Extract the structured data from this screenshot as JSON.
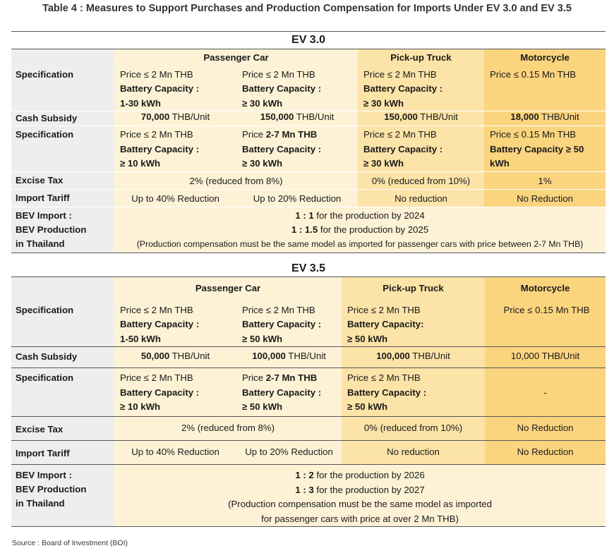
{
  "title": "Table 4 : Measures to Support Purchases and Production Compensation for Imports Under EV 3.0 and EV 3.5",
  "source": "Source : Board of Investment (BOI)",
  "ev30": {
    "section": "EV 3.0",
    "headers": {
      "passenger": "Passenger Car",
      "pickup": "Pick-up Truck",
      "moto": "Motorcycle"
    },
    "labels": {
      "spec1": "Specification",
      "cash": "Cash Subsidy",
      "spec2": "Specification",
      "excise": "Excise Tax",
      "tariff": "Import Tariff",
      "bev1": "BEV Import :",
      "bev2": "BEV Production",
      "bev3": "in Thailand"
    },
    "spec1": {
      "pc1": {
        "price": "Price ≤ 2 Mn THB",
        "bat": "Battery Capacity :",
        "val": "1-30 kWh"
      },
      "pc2": {
        "price": "Price ≤ 2 Mn THB",
        "bat": "Battery Capacity :",
        "val": "≥ 30 kWh"
      },
      "pt": {
        "price": "Price ≤ 2 Mn THB",
        "bat": "Battery Capacity :",
        "val": "≥ 30 kWh"
      },
      "mc": {
        "price": "Price ≤ 0.15 Mn THB"
      }
    },
    "cash": {
      "pc1_num": "70,000",
      "pc2_num": "150,000",
      "pt_num": "150,000",
      "mc_num": "18,000",
      "unit": " THB/Unit"
    },
    "spec2": {
      "pc1": {
        "price": "Price ≤ 2 Mn THB",
        "bat": "Battery Capacity :",
        "val": "≥ 10 kWh"
      },
      "pc2": {
        "price_pre": "Price ",
        "price_bold": "2-7 Mn THB",
        "bat": "Battery Capacity :",
        "val": "≥ 30 kWh"
      },
      "pt": {
        "price": "Price ≤ 2 Mn THB",
        "bat": "Battery Capacity :",
        "val": "≥ 30 kWh"
      },
      "mc": {
        "price": "Price ≤ 0.15 Mn THB",
        "bat": "Battery Capacity ≥ 50",
        "val": "kWh"
      }
    },
    "excise": {
      "pc": "2% (reduced from 8%)",
      "pt": "0% (reduced from 10%)",
      "mc": "1%"
    },
    "tariff": {
      "pc1": "Up to 40% Reduction",
      "pc2": "Up to 20% Reduction",
      "pt": "No reduction",
      "mc": "No Reduction"
    },
    "bev": {
      "r1_bold": "1 : 1",
      "r1_text": " for the production by 2024",
      "r2_bold": "1 : 1.5",
      "r2_text": " for the production by 2025",
      "note": "(Production compensation must be the same model as imported for passenger cars with price between 2-7 Mn THB)"
    }
  },
  "ev35": {
    "section": "EV 3.5",
    "headers": {
      "passenger": "Passenger Car",
      "pickup": "Pick-up Truck",
      "moto": "Motorcycle"
    },
    "labels": {
      "spec1": "Specification",
      "cash": "Cash Subsidy",
      "spec2": "Specification",
      "excise": "Excise Tax",
      "tariff": "Import Tariff",
      "bev1": "BEV Import :",
      "bev2": "BEV Production",
      "bev3": "in Thailand"
    },
    "spec1": {
      "pc1": {
        "price": "Price ≤ 2 Mn THB",
        "bat": "Battery Capacity :",
        "val": "1-50 kWh"
      },
      "pc2": {
        "price": "Price ≤ 2 Mn THB",
        "bat": "Battery Capacity :",
        "val": "≥ 50 kWh"
      },
      "pt": {
        "price": "Price ≤ 2 Mn THB",
        "bat": "Battery Capacity:",
        "val": "≥ 50 kWh"
      },
      "mc": {
        "price": "Price ≤ 0.15 Mn THB"
      }
    },
    "cash": {
      "pc1_num": "50,000",
      "pc2_num": "100,000",
      "pt_num": "100,000",
      "mc_text": "10,000 THB/Unit",
      "unit": " THB/Unit"
    },
    "spec2": {
      "pc1": {
        "price": "Price ≤ 2 Mn THB",
        "bat": "Battery Capacity :",
        "val": "≥ 10 kWh"
      },
      "pc2": {
        "price_pre": "Price ",
        "price_bold": "2-7 Mn THB",
        "bat": "Battery Capacity :",
        "val": "≥ 50 kWh"
      },
      "pt": {
        "price": "Price ≤ 2 Mn THB",
        "bat": "Battery Capacity :",
        "val": "≥ 50 kWh"
      },
      "mc": "-"
    },
    "excise": {
      "pc": "2% (reduced from 8%)",
      "pt": "0% (reduced from 10%)",
      "mc": "No Reduction"
    },
    "tariff": {
      "pc1": "Up to 40% Reduction",
      "pc2": "Up to 20% Reduction",
      "pt": "No reduction",
      "mc": "No Reduction"
    },
    "bev": {
      "r1_bold": "1 : 2",
      "r1_text": " for the production by 2026",
      "r2_bold": "1 : 3",
      "r2_text": " for the production by 2027",
      "note1": "(Production compensation must be the same model as imported",
      "note2": "for passenger cars with price at over 2 Mn THB)"
    }
  }
}
